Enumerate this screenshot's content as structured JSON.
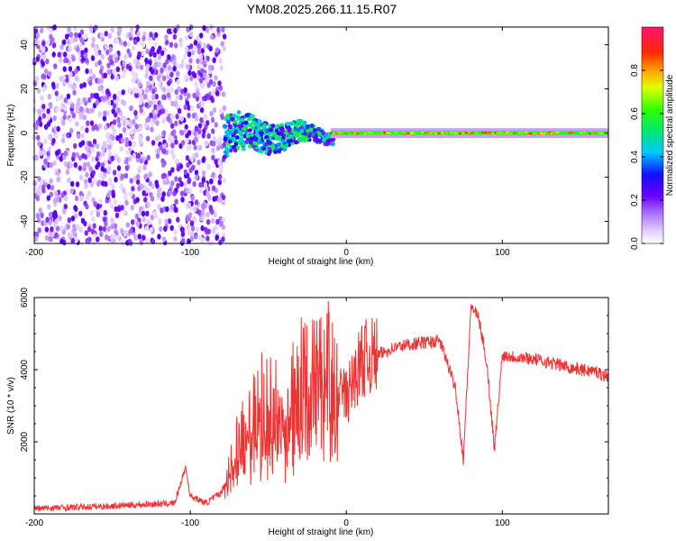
{
  "title": "YM08.2025.266.11.15.R07",
  "chart_data": [
    {
      "type": "heatmap",
      "name": "spectrogram",
      "xlabel": "Height of straight line (km)",
      "ylabel": "Frequency (Hz)",
      "xlim": [
        -200,
        168
      ],
      "ylim": [
        -50,
        48
      ],
      "xticks": [
        -200,
        -100,
        0,
        100
      ],
      "yticks": [
        -40,
        -20,
        0,
        20,
        40
      ],
      "colorbar": {
        "label": "Normalized spectral amplitude",
        "range": [
          0,
          1
        ],
        "ticks": [
          0.0,
          0.2,
          0.4,
          0.6,
          0.8
        ]
      },
      "regions": [
        {
          "x_range": [
            -200,
            -80
          ],
          "freq_range": [
            -50,
            48
          ],
          "description": "broadband noise, low amplitude"
        },
        {
          "x_range": [
            -78,
            -10
          ],
          "freq_range": [
            -8,
            8
          ],
          "description": "emerging signal band"
        },
        {
          "x_range": [
            -10,
            168
          ],
          "freq_range": [
            -2,
            2
          ],
          "description": "narrow carrier near 0 Hz, amplitude ~0.5-0.9"
        }
      ]
    },
    {
      "type": "line",
      "name": "snr",
      "xlabel": "Height of straight line (km)",
      "ylabel": "SNR (10 * v/v)",
      "xlim": [
        -200,
        168
      ],
      "ylim": [
        0,
        6000
      ],
      "xticks": [
        -200,
        -100,
        0,
        100
      ],
      "yticks": [
        2000,
        4000,
        6000
      ],
      "series": [
        {
          "name": "SNR",
          "color": "#ee3333",
          "x": [
            -200,
            -150,
            -110,
            -103,
            -100,
            -90,
            -80,
            -70,
            -60,
            -50,
            -40,
            -30,
            -20,
            -10,
            0,
            10,
            20,
            30,
            40,
            50,
            60,
            70,
            75,
            80,
            85,
            90,
            95,
            100,
            110,
            120,
            130,
            140,
            150,
            160,
            168
          ],
          "y": [
            150,
            220,
            300,
            1300,
            500,
            300,
            600,
            1800,
            2800,
            3000,
            2600,
            3800,
            3500,
            3900,
            3200,
            4300,
            4400,
            4600,
            4700,
            4750,
            4800,
            3500,
            1500,
            5800,
            5400,
            4200,
            1800,
            4400,
            4350,
            4300,
            4200,
            4100,
            4000,
            3950,
            3800
          ]
        }
      ]
    }
  ]
}
